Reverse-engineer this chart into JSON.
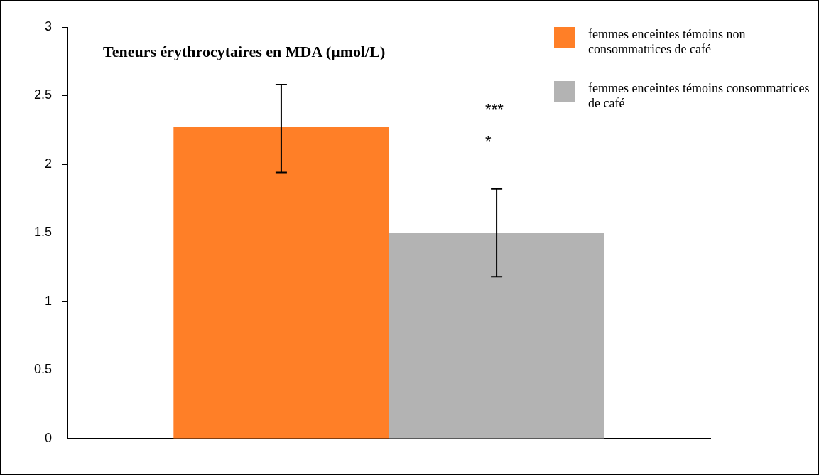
{
  "chart_data": {
    "type": "bar",
    "title": "Teneurs érythrocytaires en MDA (µmol/L)",
    "categories": [
      null
    ],
    "series": [
      {
        "name": "femmes enceintes témoins non consommatrices de café",
        "color": "#ff7f27",
        "values": [
          2.27
        ],
        "errors": [
          [
            1.94,
            2.58
          ]
        ]
      },
      {
        "name": "femmes enceintes témoins consommatrices de café",
        "color": "#b3b3b3",
        "values": [
          1.5
        ],
        "errors": [
          [
            1.18,
            1.82
          ]
        ]
      }
    ],
    "ylim": [
      0,
      3
    ],
    "yticks": [
      0,
      0.5,
      1,
      1.5,
      2,
      2.5,
      3
    ],
    "annotations": [
      "***\n*"
    ],
    "legend": "top right",
    "grid": false,
    "tick_labels": "y"
  }
}
